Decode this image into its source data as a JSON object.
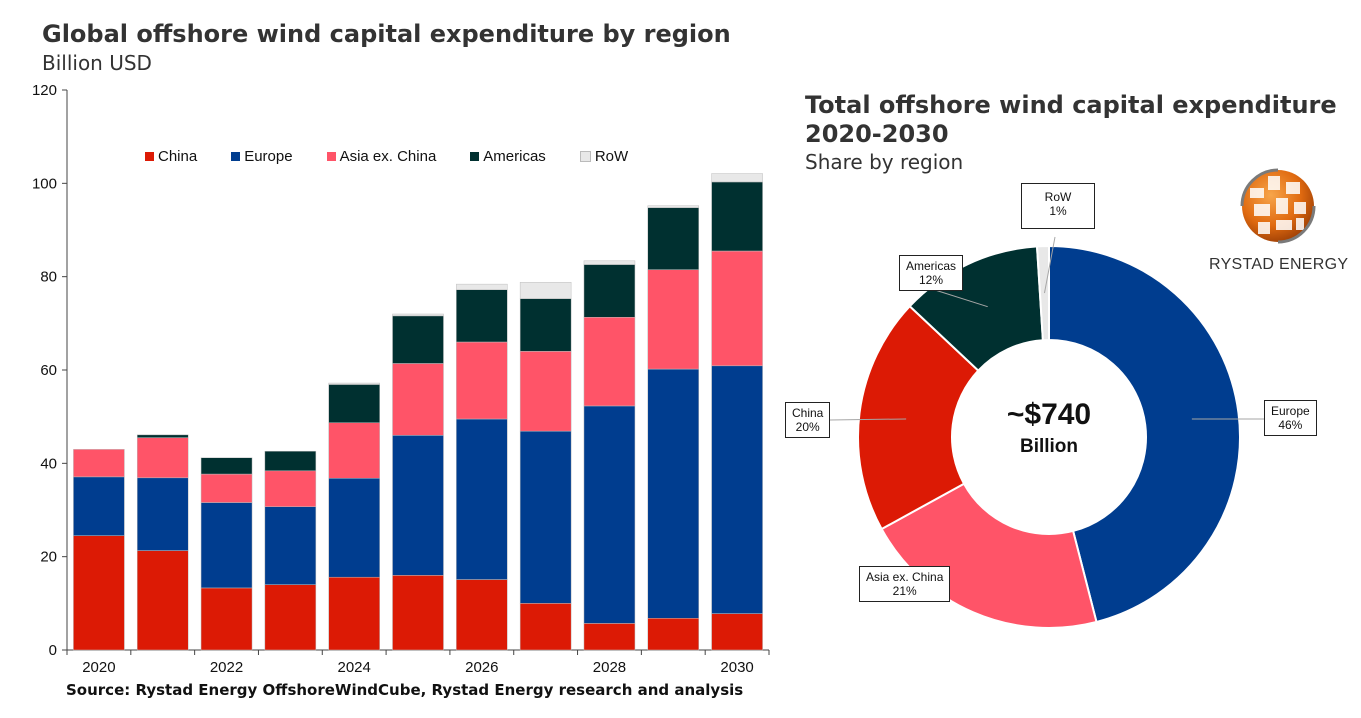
{
  "left_title": "Global offshore wind capital expenditure by region",
  "left_subtitle": "Billion USD",
  "right_title_line1": "Total offshore wind capital expenditure",
  "right_title_line2": "2020-2030",
  "right_subtitle": "Share by region",
  "source": "Source: Rystad Energy OffshoreWindCube, Rystad Energy research and analysis",
  "logo_text": "RYSTAD ENERGY",
  "colors": {
    "China": "#dc1a05",
    "Europe": "#003d8f",
    "Asia ex. China": "#ff5468",
    "Americas": "#003030",
    "RoW": "#e8e8e8"
  },
  "chart_data": [
    {
      "type": "bar",
      "stacked": true,
      "title": "Global offshore wind capital expenditure by region",
      "subtitle": "Billion USD",
      "x": [
        2020,
        2021,
        2022,
        2023,
        2024,
        2025,
        2026,
        2027,
        2028,
        2029,
        2030
      ],
      "x_tick_labels": [
        "2020",
        "",
        "2022",
        "",
        "2024",
        "",
        "2026",
        "",
        "2028",
        "",
        "2030"
      ],
      "y_ticks": [
        0,
        20,
        40,
        60,
        80,
        100,
        120
      ],
      "ylim": [
        0,
        120
      ],
      "legend": "top",
      "grid": false,
      "series": [
        {
          "name": "China",
          "values": [
            24.5,
            21.3,
            13.3,
            14.0,
            15.6,
            16.0,
            15.1,
            10.0,
            5.7,
            6.8,
            7.8
          ]
        },
        {
          "name": "Europe",
          "values": [
            12.6,
            15.6,
            18.3,
            16.7,
            21.2,
            30.0,
            34.4,
            36.9,
            46.6,
            53.4,
            53.1
          ]
        },
        {
          "name": "Asia ex. China",
          "values": [
            5.9,
            8.6,
            6.1,
            7.7,
            11.9,
            15.4,
            16.5,
            17.1,
            19.0,
            21.3,
            24.6
          ]
        },
        {
          "name": "Americas",
          "values": [
            0.0,
            0.6,
            3.5,
            4.2,
            8.2,
            10.2,
            11.2,
            11.3,
            11.3,
            13.3,
            14.8
          ]
        },
        {
          "name": "RoW",
          "values": [
            0.0,
            0.0,
            0.0,
            0.0,
            0.3,
            0.4,
            1.2,
            3.5,
            0.8,
            0.4,
            1.8
          ]
        }
      ]
    },
    {
      "type": "pie",
      "donut": true,
      "title": "Total offshore wind capital expenditure 2020-2030",
      "subtitle": "Share by region",
      "center_value": "~$740",
      "center_unit": "Billion",
      "slices": [
        {
          "name": "Europe",
          "value": 46,
          "label": "46%"
        },
        {
          "name": "Asia ex. China",
          "value": 21,
          "label": "21%"
        },
        {
          "name": "China",
          "value": 20,
          "label": "20%"
        },
        {
          "name": "Americas",
          "value": 12,
          "label": "12%"
        },
        {
          "name": "RoW",
          "value": 1,
          "label": "1%"
        }
      ]
    }
  ]
}
